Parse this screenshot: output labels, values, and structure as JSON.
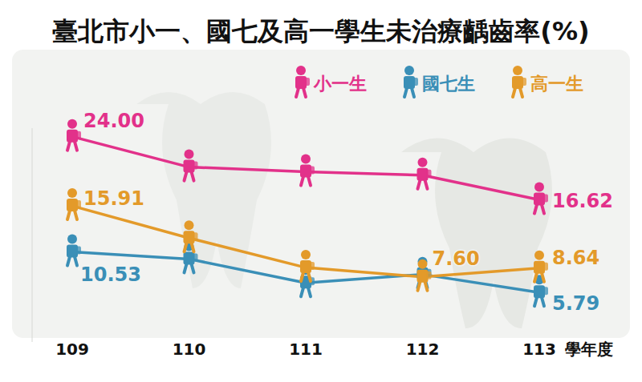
{
  "chart_data": {
    "type": "line",
    "title": "臺北市小一、國七及高一學生未治療齲齒率(%)",
    "x_label": "學年度",
    "categories": [
      "109",
      "110",
      "111",
      "112",
      "113"
    ],
    "series": [
      {
        "name": "小一生",
        "color": "#e2318a",
        "marker": "person",
        "values": [
          24.0,
          20.45,
          19.9,
          19.5,
          16.62
        ],
        "value_labels": [
          "24.00",
          null,
          null,
          null,
          "16.62"
        ]
      },
      {
        "name": "國七生",
        "color": "#3a8fb7",
        "marker": "person",
        "values": [
          10.53,
          9.7,
          6.9,
          7.9,
          5.79
        ],
        "value_labels": [
          "10.53",
          null,
          null,
          null,
          "5.79"
        ]
      },
      {
        "name": "高一生",
        "color": "#e39a2a",
        "marker": "person",
        "values": [
          15.91,
          12.15,
          8.7,
          7.6,
          8.64
        ],
        "value_labels": [
          "15.91",
          null,
          null,
          "7.60",
          "8.64"
        ]
      }
    ],
    "ylim": [
      0,
      25
    ],
    "tick_labels": "x",
    "data_labels": true,
    "legend": "top",
    "grid": false
  }
}
